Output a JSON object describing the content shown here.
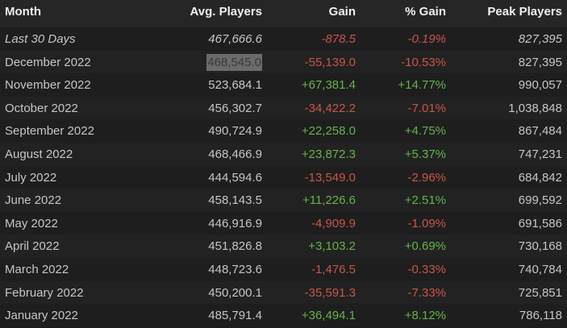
{
  "table": {
    "header": [
      "Month",
      "Avg. Players",
      "Gain",
      "% Gain",
      "Peak Players"
    ],
    "rows": [
      [
        "Last 30 Days",
        "467,666.6",
        "-878.5",
        "-0.19%",
        "827,395"
      ],
      [
        "December 2022",
        "468,545.0",
        "-55,139.0",
        "-10.53%",
        "827,395"
      ],
      [
        "November 2022",
        "523,684.1",
        "+67,381.4",
        "+14.77%",
        "990,057"
      ],
      [
        "October 2022",
        "456,302.7",
        "-34,422.2",
        "-7.01%",
        "1,038,848"
      ],
      [
        "September 2022",
        "490,724.9",
        "+22,258.0",
        "+4.75%",
        "867,484"
      ],
      [
        "August 2022",
        "468,466.9",
        "+23,872.3",
        "+5.37%",
        "747,231"
      ],
      [
        "July 2022",
        "444,594.6",
        "-13,549.0",
        "-2.96%",
        "684,842"
      ],
      [
        "June 2022",
        "458,143.5",
        "+11,226.6",
        "+2.51%",
        "699,592"
      ],
      [
        "May 2022",
        "446,916.9",
        "-4,909.9",
        "-1.09%",
        "691,586"
      ],
      [
        "April 2022",
        "451,826.8",
        "+3,103.2",
        "+0.69%",
        "730,168"
      ],
      [
        "March 2022",
        "448,723.6",
        "-1,476.5",
        "-0.33%",
        "740,784"
      ],
      [
        "February 2022",
        "450,200.1",
        "-35,591.3",
        "-7.33%",
        "725,851"
      ],
      [
        "January 2022",
        "485,791.4",
        "+36,494.1",
        "+8.12%",
        "786,118"
      ]
    ]
  }
}
